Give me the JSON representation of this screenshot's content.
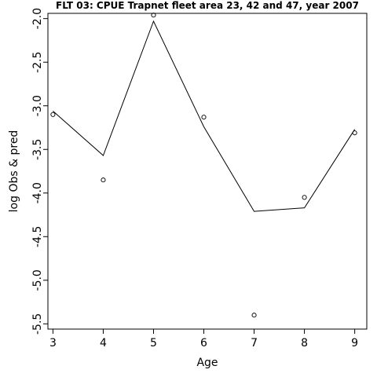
{
  "chart_data": {
    "type": "line",
    "title": "FLT 03: CPUE Trapnet fleet area 23, 42 and 47, year 2007",
    "xlabel": "Age",
    "ylabel": "log Obs & pred",
    "xlim": [
      2.9,
      9.24
    ],
    "ylim": [
      -5.56,
      -1.94
    ],
    "x_ticks": [
      3,
      4,
      5,
      6,
      7,
      8,
      9
    ],
    "y_ticks": [
      -5.5,
      -5.0,
      -4.5,
      -4.0,
      -3.5,
      -3.0,
      -2.5,
      -2.0
    ],
    "y_tick_labels": [
      "-5.5",
      "-5.0",
      "-4.5",
      "-4.0",
      "-3.5",
      "-3.0",
      "-2.5",
      "-2.0"
    ],
    "grid": false,
    "series": [
      {
        "kind": "line",
        "x": [
          3,
          4,
          5,
          6,
          7,
          8,
          9
        ],
        "y": [
          -3.06,
          -3.57,
          -2.03,
          -3.24,
          -4.21,
          -4.17,
          -3.27
        ]
      },
      {
        "kind": "points",
        "x": [
          3,
          4,
          5,
          6,
          7,
          8,
          9
        ],
        "y": [
          -3.1,
          -3.85,
          -1.96,
          -3.13,
          -5.4,
          -4.05,
          -3.31
        ]
      }
    ]
  }
}
